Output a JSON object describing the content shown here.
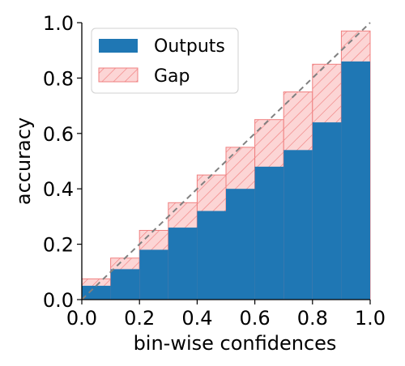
{
  "chart_data": {
    "type": "bar",
    "xlabel": "bin-wise confidences",
    "ylabel": "accuracy",
    "xlim": [
      0,
      1.0
    ],
    "ylim": [
      0,
      1.0
    ],
    "xticks": [
      "0.0",
      "0.2",
      "0.4",
      "0.6",
      "0.8",
      "1.0"
    ],
    "yticks": [
      "0.0",
      "0.2",
      "0.4",
      "0.6",
      "0.8",
      "1.0"
    ],
    "bin_edges": [
      0.0,
      0.1,
      0.2,
      0.3,
      0.4,
      0.5,
      0.6,
      0.7,
      0.8,
      0.9,
      1.0
    ],
    "series": [
      {
        "name": "Outputs",
        "values": [
          0.05,
          0.11,
          0.18,
          0.26,
          0.32,
          0.4,
          0.48,
          0.54,
          0.64,
          0.86
        ],
        "color": "#1f77b4"
      },
      {
        "name": "Gap",
        "values": [
          0.075,
          0.15,
          0.25,
          0.35,
          0.45,
          0.55,
          0.65,
          0.75,
          0.85,
          0.97
        ],
        "color": "#f08080",
        "fill": "#fcd5d5",
        "hatch": "diagonal"
      }
    ],
    "reference_line": {
      "style": "dashed",
      "color": "#808080"
    },
    "legend": {
      "position": "top-left"
    },
    "grid": false
  }
}
